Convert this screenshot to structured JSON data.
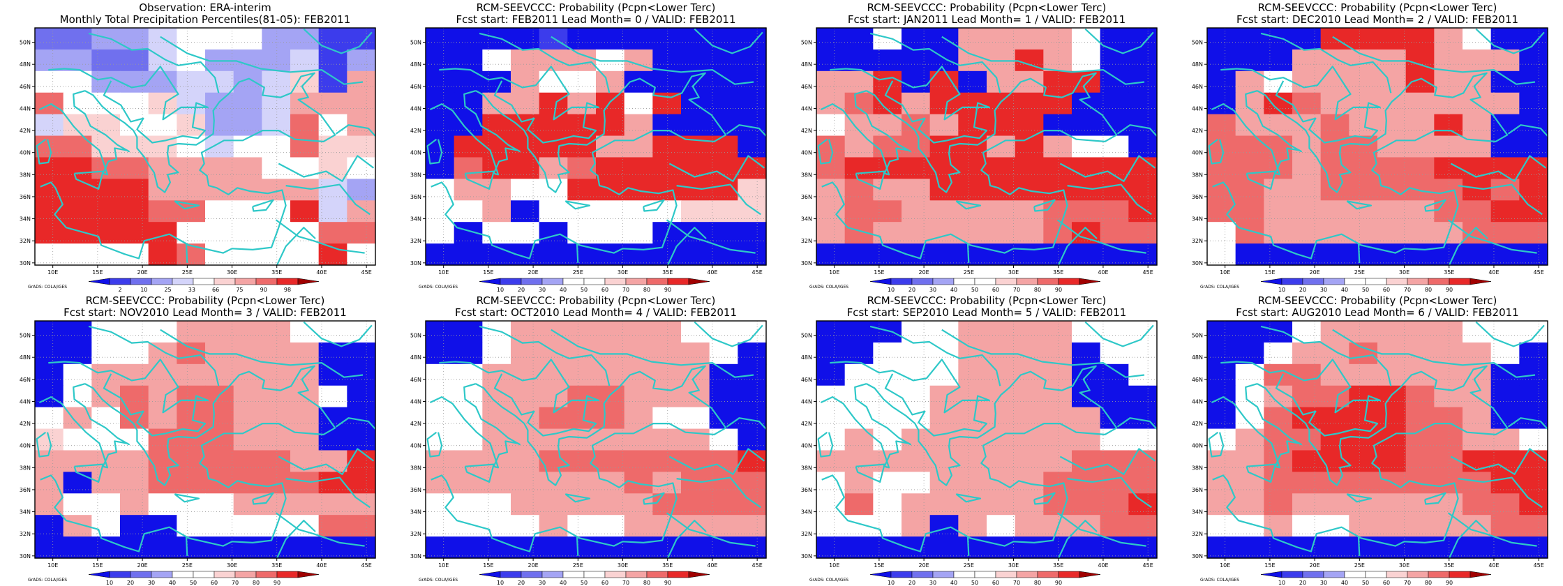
{
  "colors": {
    "coastline": "#2ec8c8",
    "grid": "#9a9a9a",
    "frame": "#000000",
    "grid_on": true
  },
  "palettes": {
    "percentile": [
      "#1010e8",
      "#3c3cec",
      "#7070ee",
      "#a4a4f4",
      "#d4d4fa",
      "#ffffff",
      "#fad2d2",
      "#f4a4a4",
      "#ee6a6a",
      "#e82828",
      "#a00000"
    ],
    "probability": [
      "#1010e8",
      "#3c3cec",
      "#7070ee",
      "#a4a4f4",
      "#ffffff",
      "#ffffff",
      "#fad2d2",
      "#f4a4a4",
      "#ee6a6a",
      "#e82828",
      "#a00000"
    ]
  },
  "axes": {
    "lon_ticks": [
      "10E",
      "15E",
      "20E",
      "25E",
      "30E",
      "35E",
      "40E",
      "45E"
    ],
    "lat_ticks": [
      "30N",
      "32N",
      "34N",
      "36N",
      "38N",
      "40N",
      "42N",
      "44N",
      "46N",
      "48N",
      "50N"
    ],
    "lon_range": [
      8,
      46
    ],
    "lat_range": [
      29.8,
      51.3
    ]
  },
  "credit": "GrADS: COLA/IGES",
  "panels": [
    {
      "title1": "Observation: ERA-interim",
      "title2": "Monthly Total Precipitation Percentiles(81-05): FEB2011",
      "palette": "percentile",
      "legend_labels": [
        "2",
        "10",
        "25",
        "33",
        "66",
        "75",
        "90",
        "98"
      ],
      "grid": [
        "223345553311",
        "332245333413",
        "553334434617",
        "855564334777",
        "466556334857",
        "886665455866",
        "998877775565",
        "999977777743",
        "999988555947",
        "999995555588",
        "555598555595"
      ]
    },
    {
      "title1": "RCM-SEEVCCC: Probability (Pcpn<Lower Terc)",
      "title2": "Fcst start: FEB2011   Lead Month= 0 / VALID: FEB2011",
      "palette": "probability",
      "legend_labels": [
        "10",
        "20",
        "30",
        "40",
        "50",
        "60",
        "70",
        "80",
        "90"
      ],
      "grid": [
        "000010000000",
        "004777570000",
        "000755700000",
        "007797959000",
        "009999970000",
        "099999779990",
        "089978999999",
        "477559999996",
        "557055455666",
        "505505550000",
        "000000000000"
      ]
    },
    {
      "title1": "RCM-SEEVCCC: Probability (Pcpn<Lower Terc)",
      "title2": "Fcst start: JAN2011   Lead Month= 1 / VALID: FEB2011",
      "palette": "probability",
      "legend_labels": [
        "10",
        "20",
        "30",
        "40",
        "50",
        "60",
        "70",
        "80",
        "90"
      ],
      "grid": [
        "005007777500",
        "000007797500",
        "779090779900",
        "789799999000",
        "577879990000",
        "878899797550",
        "899999999999",
        "787799999999",
        "788777778889",
        "787777778988",
        "000000000000"
      ]
    },
    {
      "title1": "RCM-SEEVCCC: Probability (Pcpn<Lower Terc)",
      "title2": "Fcst start: DEC2010   Lead Month= 2 / VALID: FEB2011",
      "palette": "probability",
      "legend_labels": [
        "10",
        "20",
        "30",
        "40",
        "50",
        "60",
        "70",
        "80",
        "90"
      ],
      "grid": [
        "000099997500",
        "000777797770",
        "075777797700",
        "079877777770",
        "877787779700",
        "888788777700",
        "888788889999",
        "887788888989",
        "887777778899",
        "587777777888",
        "500000000000"
      ]
    },
    {
      "title1": "RCM-SEEVCCC: Probability (Pcpn<Lower Terc)",
      "title2": "Fcst start: NOV2010   Lead Month= 3 / VALID: FEB2011",
      "palette": "probability",
      "legend_labels": [
        "10",
        "20",
        "30",
        "40",
        "50",
        "60",
        "70",
        "80",
        "90"
      ],
      "grid": [
        "005557777555",
        "005578777700",
        "057777777700",
        "057878877750",
        "575878877700",
        "655588877700",
        "777788888779",
        "707788888899",
        "755755577777",
        "075005555588",
        "000000000000"
      ]
    },
    {
      "title1": "RCM-SEEVCCC: Probability (Pcpn<Lower Terc)",
      "title2": "Fcst start: OCT2010   Lead Month= 4 / VALID: FEB2011",
      "palette": "probability",
      "legend_labels": [
        "10",
        "20",
        "30",
        "40",
        "50",
        "60",
        "70",
        "80",
        "90"
      ],
      "grid": [
        "005777777555",
        "005777777750",
        "557777777700",
        "557778877700",
        "557788875500",
        "557777777750",
        "777788888889",
        "777777787888",
        "555777778888",
        "555575577777",
        "000000000000"
      ]
    },
    {
      "title1": "RCM-SEEVCCC: Probability (Pcpn<Lower Terc)",
      "title2": "Fcst start: SEP2010   Lead Month= 5 / VALID: FEB2011",
      "palette": "probability",
      "legend_labels": [
        "10",
        "20",
        "30",
        "40",
        "50",
        "60",
        "70",
        "80",
        "90"
      ],
      "grid": [
        "000557777555",
        "005557777055",
        "055557777005",
        "555577777000",
        "555577777700",
        "575777777755",
        "777777777888",
        "575577778888",
        "585777778889",
        "555707577788",
        "000000000000"
      ]
    },
    {
      "title1": "RCM-SEEVCCC: Probability (Pcpn<Lower Terc)",
      "title2": "Fcst start: AUG2010   Lead Month= 6 / VALID: FEB2011",
      "palette": "probability",
      "legend_labels": [
        "10",
        "20",
        "30",
        "40",
        "50",
        "60",
        "70",
        "80",
        "90"
      ],
      "grid": [
        "000577777555",
        "005778777750",
        "058877777700",
        "057889987700",
        "058999988700",
        "578899988775",
        "778999988999",
        "778888888899",
        "778777777889",
        "557557777788",
        "000000000000"
      ]
    }
  ]
}
